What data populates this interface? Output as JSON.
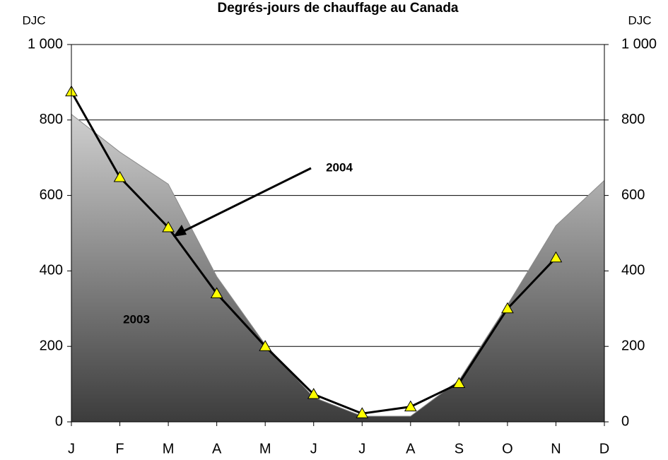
{
  "chart_data": {
    "type": "area_line",
    "title": "Degrés-jours de chauffage au Canada",
    "y_label": "DJC",
    "y2_label": "DJC",
    "categories": [
      "J",
      "F",
      "M",
      "A",
      "M",
      "J",
      "J",
      "A",
      "S",
      "O",
      "N",
      "D"
    ],
    "series": [
      {
        "name": "2003",
        "kind": "area",
        "color": "#8a8a8a",
        "values": [
          815,
          715,
          630,
          385,
          205,
          65,
          15,
          15,
          110,
          310,
          520,
          640
        ]
      },
      {
        "name": "2004",
        "kind": "line",
        "color": "#000000",
        "marker_color": "#ffff00",
        "values": [
          875,
          648,
          515,
          340,
          200,
          73,
          22,
          40,
          102,
          300,
          435,
          null
        ]
      }
    ],
    "ylim": [
      0,
      1000
    ],
    "yticks": [
      0,
      200,
      400,
      600,
      800,
      {
        "value": 1000,
        "label": "1 000"
      }
    ],
    "y2lim": [
      0,
      1000
    ],
    "y2ticks": [
      0,
      200,
      400,
      600,
      800,
      {
        "value": 1000,
        "label": "1 000"
      }
    ],
    "grid": true
  }
}
